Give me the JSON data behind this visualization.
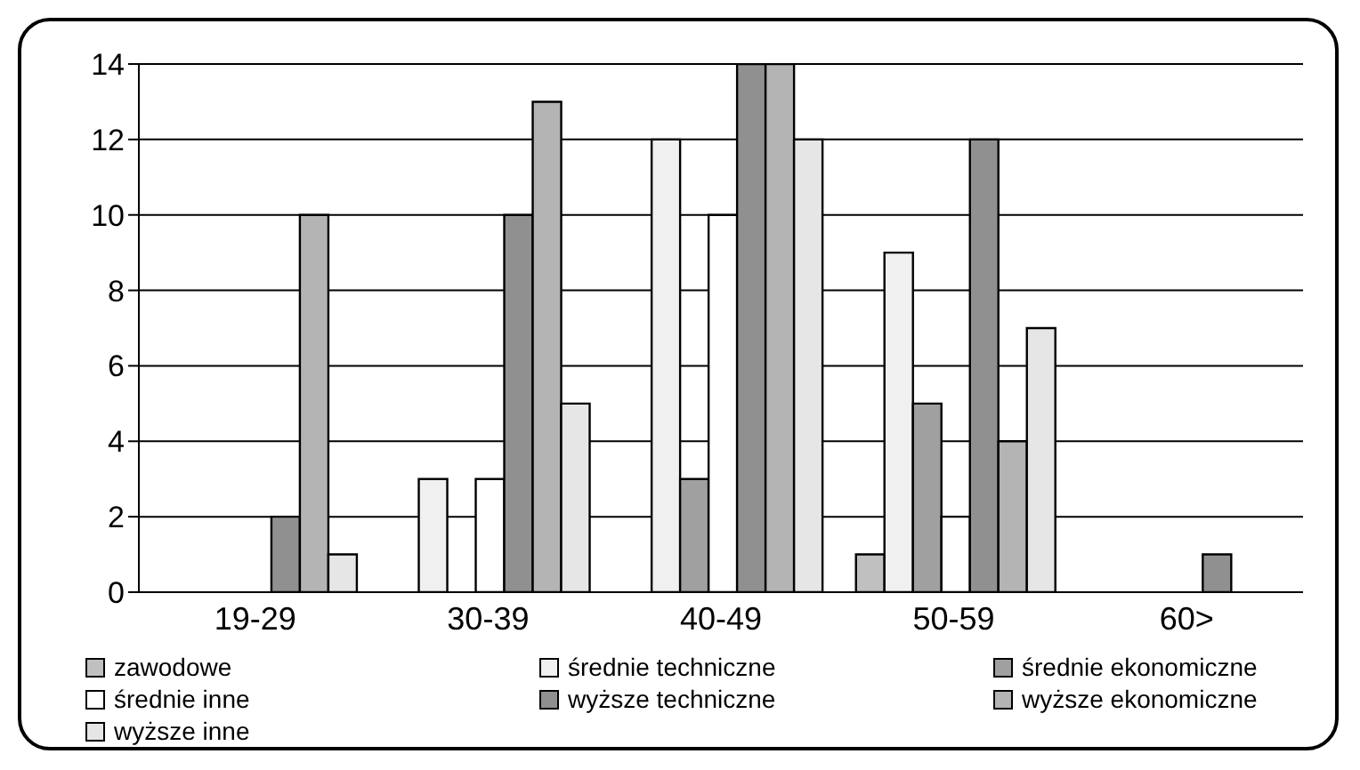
{
  "chart_data": {
    "type": "bar",
    "categories": [
      "19-29",
      "30-39",
      "40-49",
      "50-59",
      "60>"
    ],
    "series": [
      {
        "name": "zawodowe",
        "color": "#c0c0c0",
        "values": [
          0,
          0,
          0,
          1,
          0
        ]
      },
      {
        "name": "średnie techniczne",
        "color": "#f0f0f0",
        "values": [
          0,
          3,
          12,
          9,
          0
        ]
      },
      {
        "name": "średnie ekonomiczne",
        "color": "#a0a0a0",
        "values": [
          0,
          0,
          3,
          5,
          0
        ]
      },
      {
        "name": "średnie inne",
        "color": "#ffffff",
        "values": [
          0,
          3,
          10,
          2,
          0
        ]
      },
      {
        "name": "wyższe techniczne",
        "color": "#909090",
        "values": [
          2,
          10,
          14,
          12,
          1
        ]
      },
      {
        "name": "wyższe ekonomiczne",
        "color": "#b4b4b4",
        "values": [
          10,
          13,
          14,
          4,
          0
        ]
      },
      {
        "name": "wyższe inne",
        "color": "#e6e6e6",
        "values": [
          1,
          5,
          12,
          7,
          0
        ]
      }
    ],
    "ylim": [
      0,
      14
    ],
    "yticks": [
      0,
      2,
      4,
      6,
      8,
      10,
      12,
      14
    ],
    "grid": "y",
    "legend": "bottom"
  }
}
